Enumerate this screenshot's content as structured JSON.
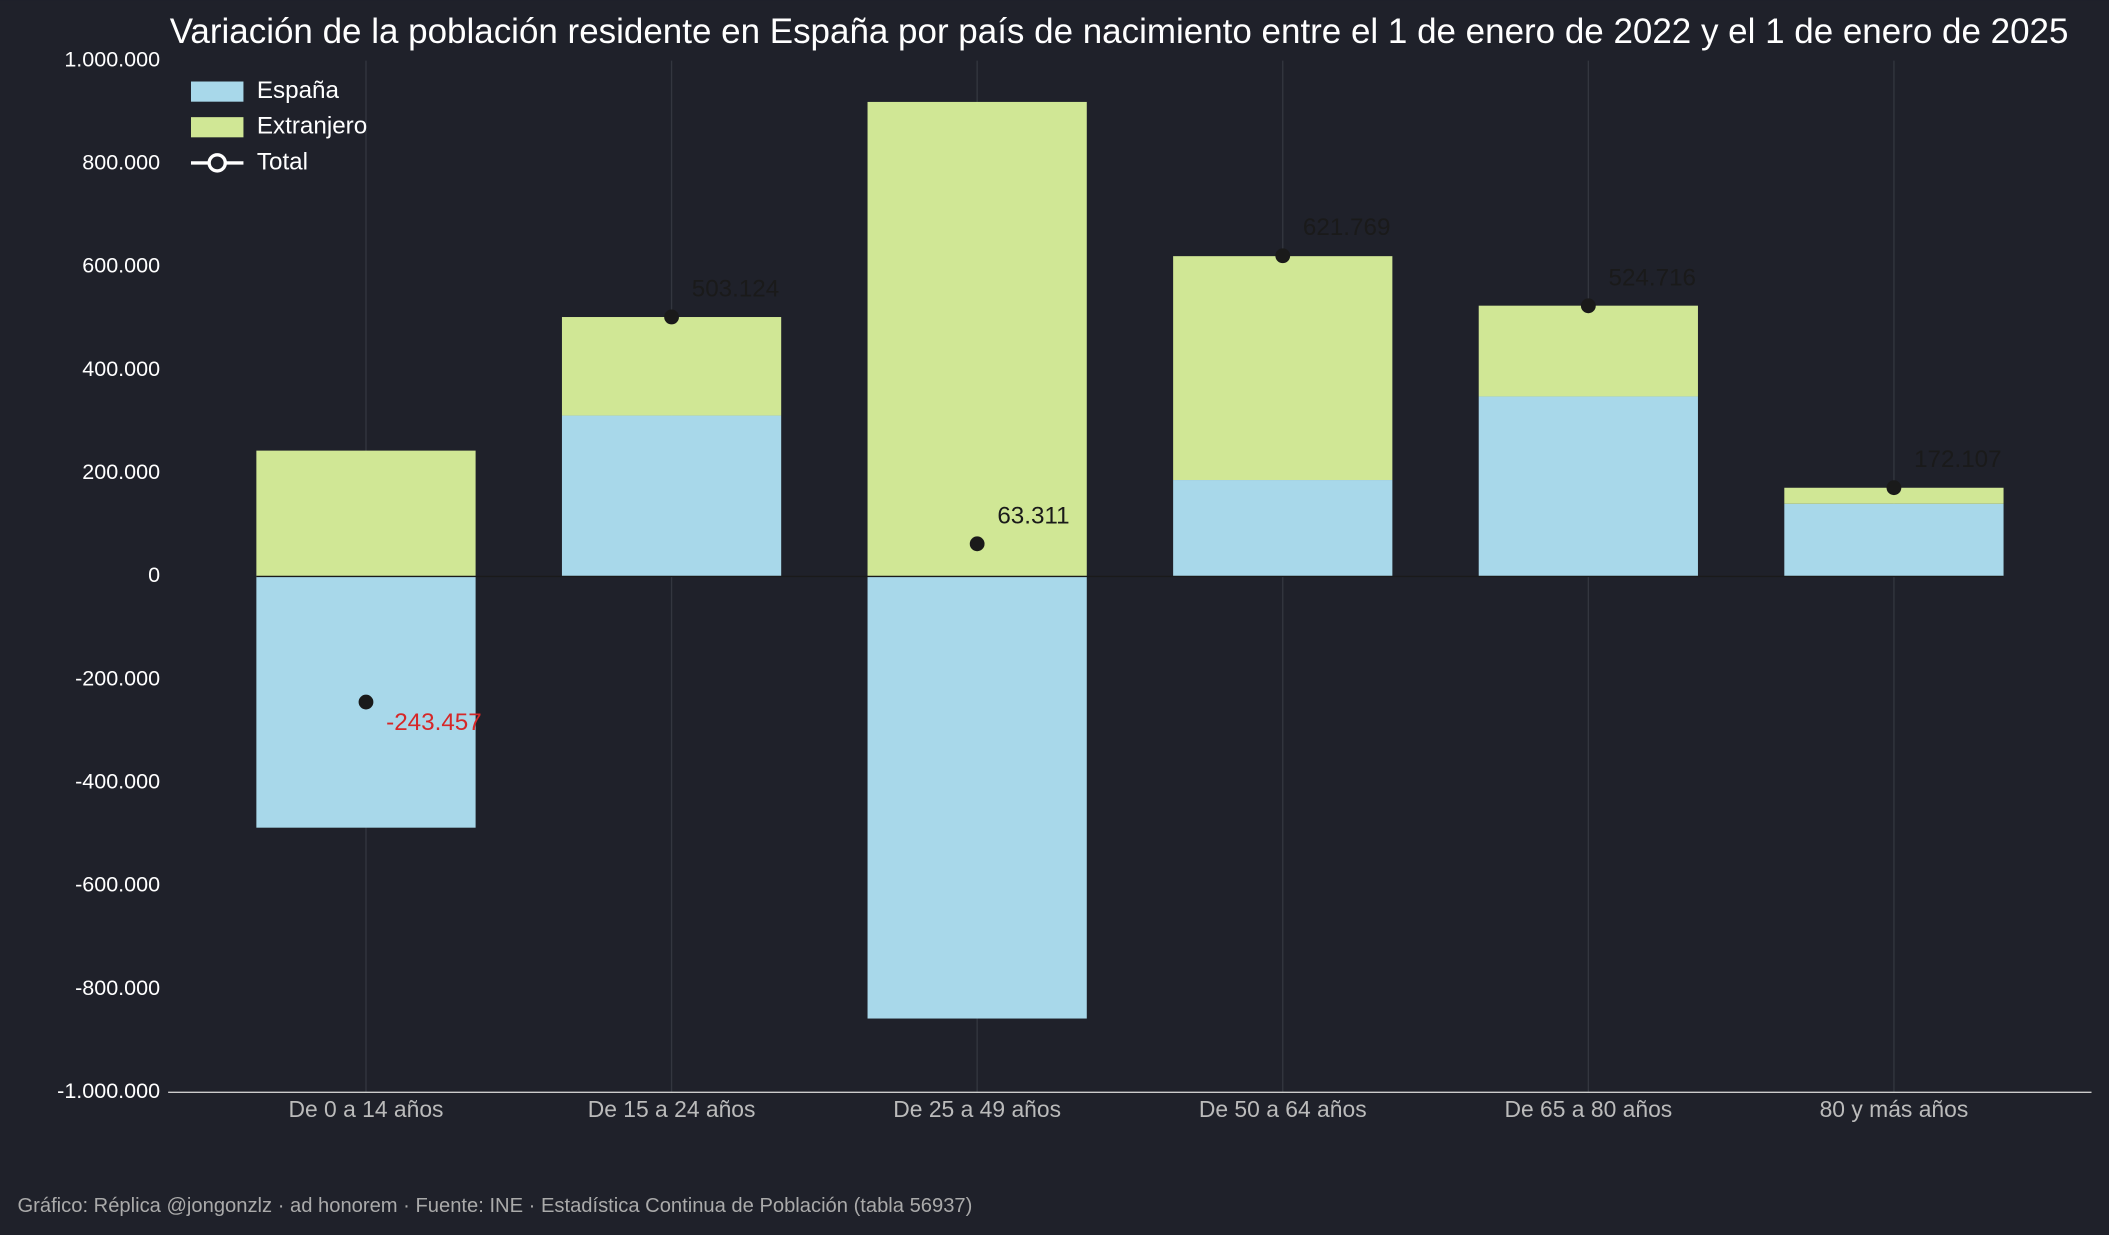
{
  "chart_data": {
    "type": "stacked_bar",
    "title": "Variación de la población residente en España por país de nacimiento entre el 1 de enero de 2022 y el 1 de enero de 2025",
    "source": "Gráfico: Réplica @jongonzlz · ad honorem  ·  Fuente: INE · Estadística Continua de Población (tabla 56937)",
    "categories": [
      "De 0 a 14 años",
      "De 15 a 24 años",
      "De 25 a 49 años",
      "De 50 a 64 años",
      "De 65 a 80 años",
      "80 y más años"
    ],
    "series": [
      {
        "name": "España",
        "color": "#a8d8ea",
        "values": [
          -487000,
          312000,
          -857000,
          187000,
          349000,
          141000
        ]
      },
      {
        "name": "Extranjero",
        "color": "#d0e795",
        "values": [
          244000,
          191000,
          920000,
          434000,
          176000,
          31000
        ]
      },
      {
        "name": "Total",
        "type": "marker",
        "color": "#1a1a1a",
        "values": [
          -243457,
          503124,
          63311,
          621769,
          524716,
          172107
        ],
        "value_labels": [
          "-243.457",
          "503.124",
          "63.311",
          "621.769",
          "524.716",
          "172.107"
        ]
      }
    ],
    "total_label_color": "#1a1a1a",
    "negative_label_color": "#d62728",
    "ylim": [
      -1000000,
      1000000
    ],
    "yticks": [
      {
        "value": -1000000,
        "label": "-1.000.000"
      },
      {
        "value": -800000,
        "label": "-800.000"
      },
      {
        "value": -600000,
        "label": "-600.000"
      },
      {
        "value": -400000,
        "label": "-400.000"
      },
      {
        "value": -200000,
        "label": "-200.000"
      },
      0,
      {
        "value": 200000,
        "label": "200.000"
      },
      {
        "value": 400000,
        "label": "400.000"
      },
      {
        "value": 600000,
        "label": "600.000"
      },
      {
        "value": 800000,
        "label": "800.000"
      },
      {
        "value": 1000000,
        "label": "1.000.000"
      }
    ],
    "xgrid": true,
    "legend": "upper-left"
  }
}
